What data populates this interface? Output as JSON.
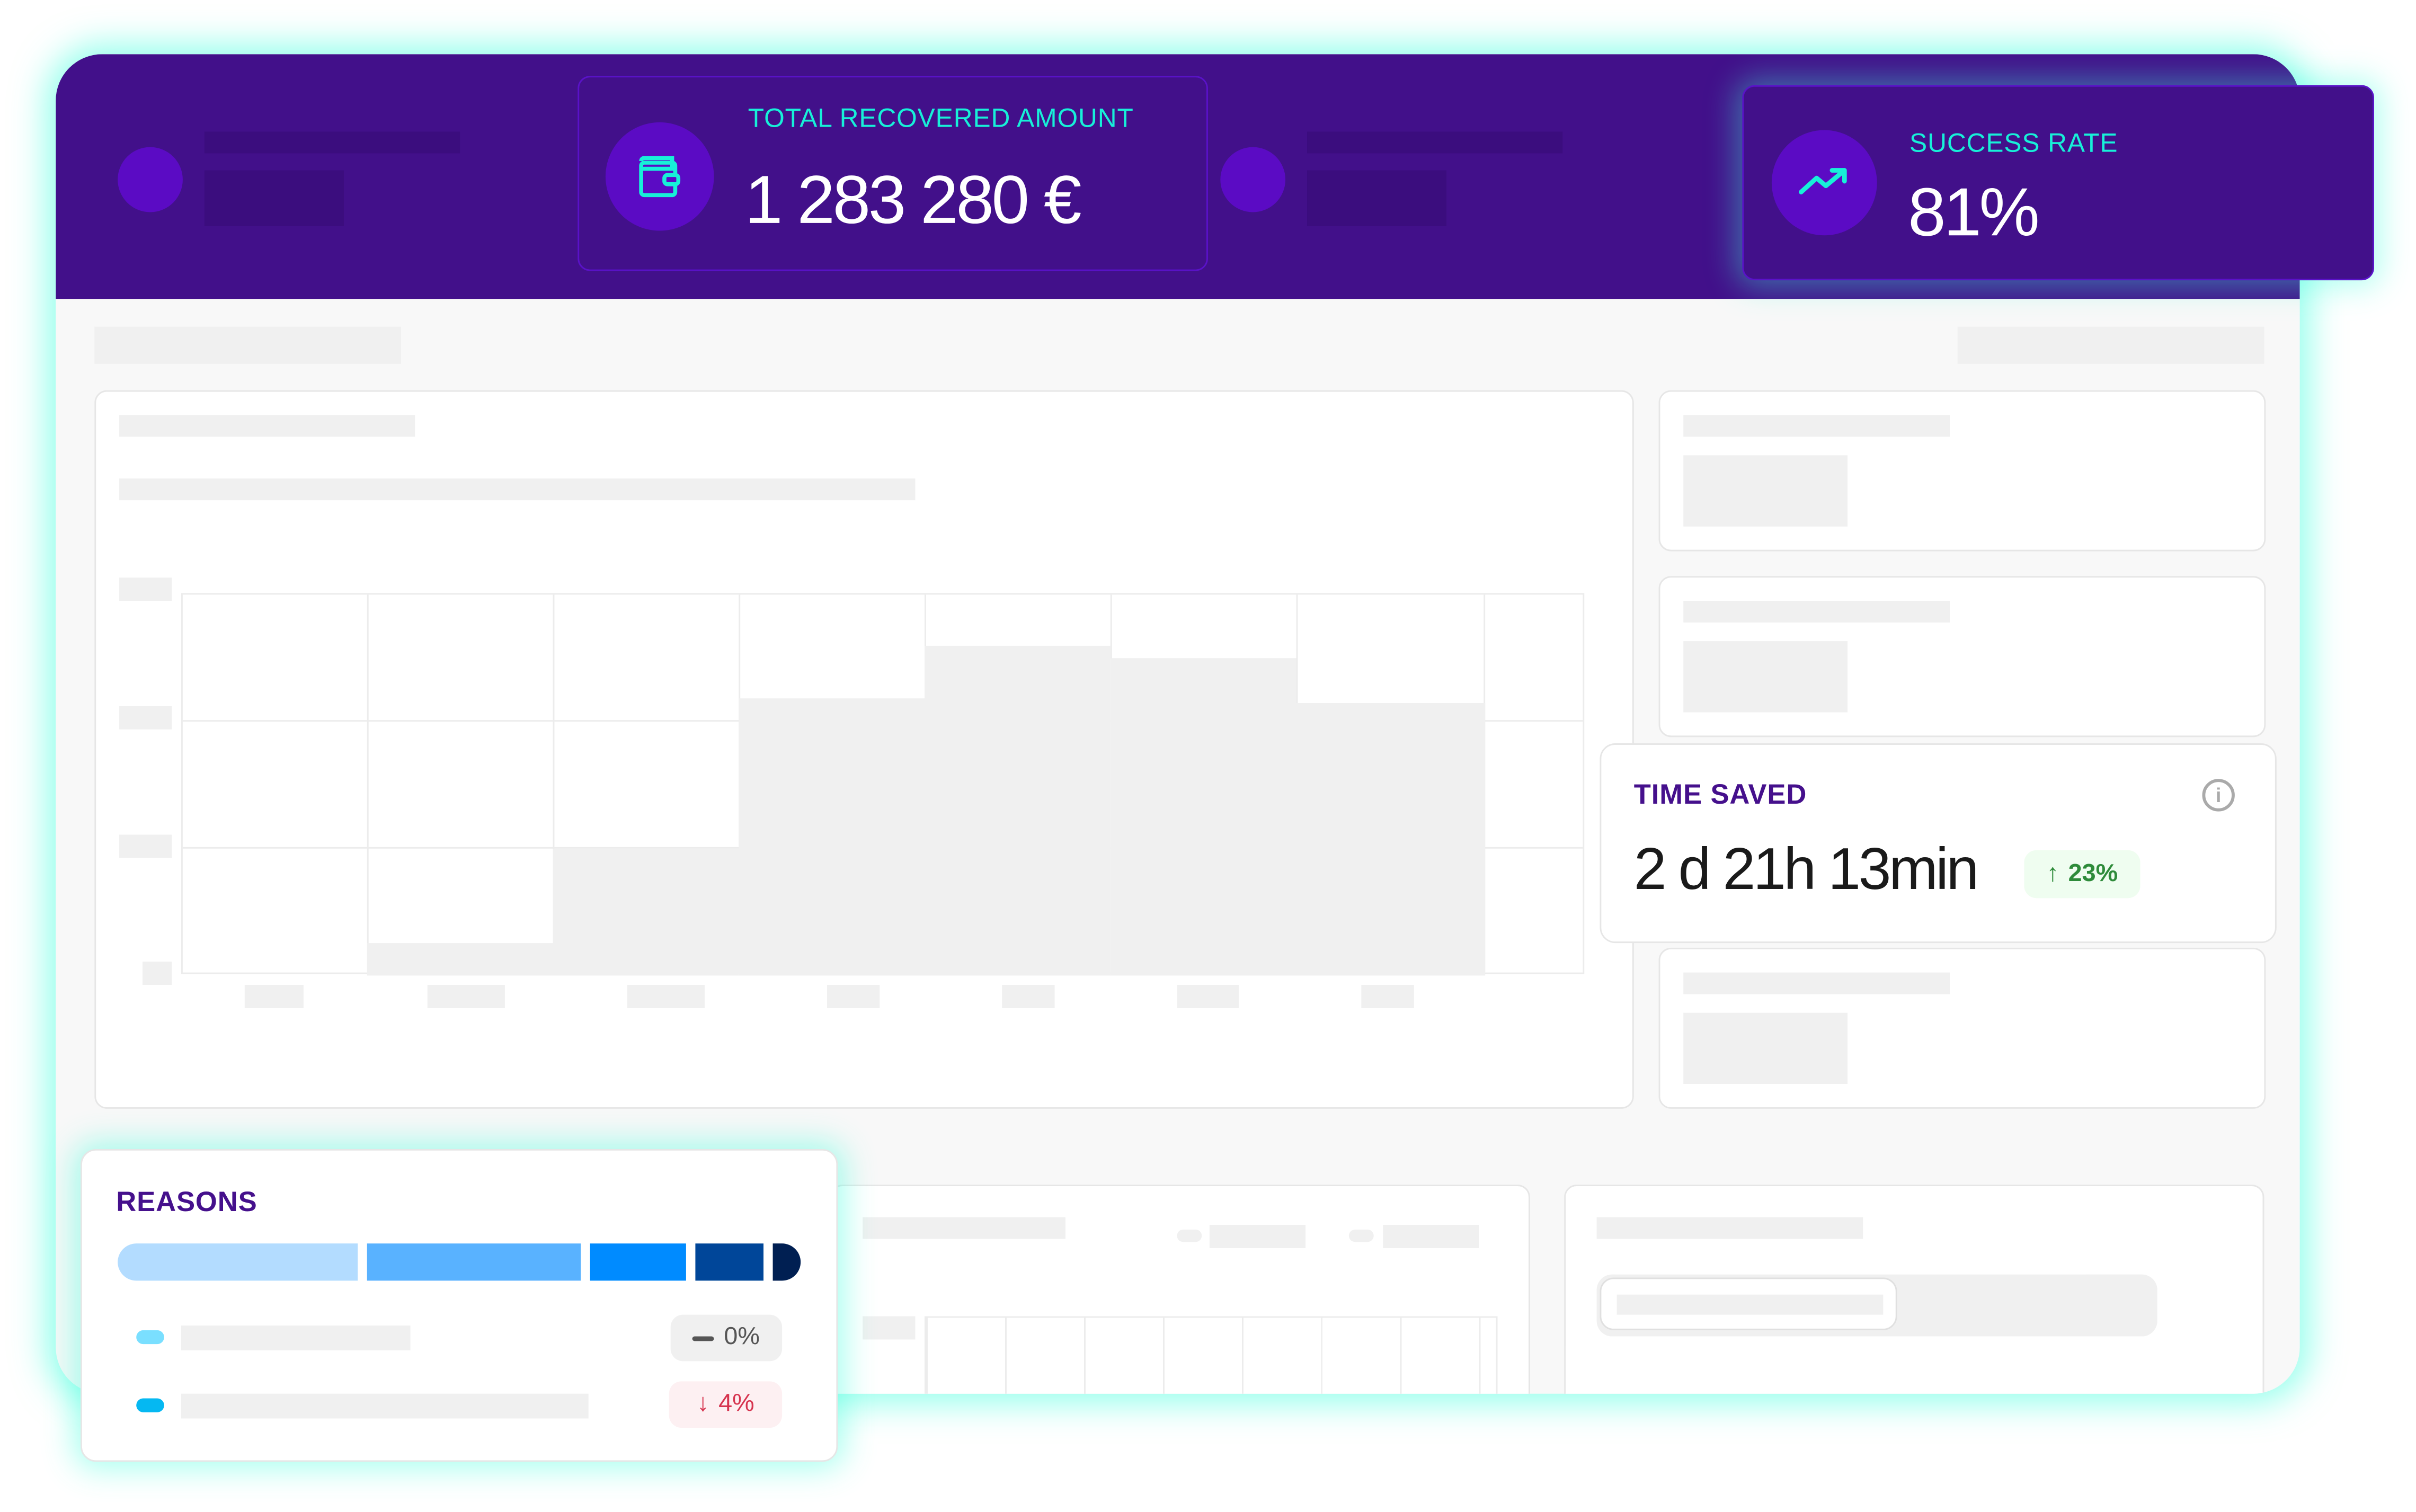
{
  "kpis": {
    "total_recovered": {
      "label": "TOTAL RECOVERED AMOUNT",
      "value": "1 283 280 €",
      "icon": "wallet-icon"
    },
    "success_rate": {
      "label": "SUCCESS RATE",
      "value": "81%",
      "icon": "trending-up-icon"
    }
  },
  "time_saved": {
    "label": "TIME SAVED",
    "days": "2",
    "days_unit": "d",
    "hours": "21",
    "hours_unit": "h",
    "minutes": "13",
    "minutes_unit": "min",
    "change": "23%",
    "change_direction": "up",
    "icon": "info-icon"
  },
  "reasons": {
    "label": "REASONS",
    "segments": [
      {
        "color": "#b3dcff"
      },
      {
        "color": "#59b2ff"
      },
      {
        "color": "#008bff"
      },
      {
        "color": "#004699"
      },
      {
        "color": "#001f52"
      }
    ],
    "rows": [
      {
        "dot_color": "#7adfff",
        "change": "0%",
        "direction": "flat"
      },
      {
        "dot_color": "#05b8f2",
        "change": "4%",
        "direction": "down"
      }
    ]
  },
  "colors": {
    "brand_purple": "#42108a",
    "accent_teal": "#17f0d8",
    "positive": "#2e8b3a",
    "negative": "#d6344f"
  }
}
